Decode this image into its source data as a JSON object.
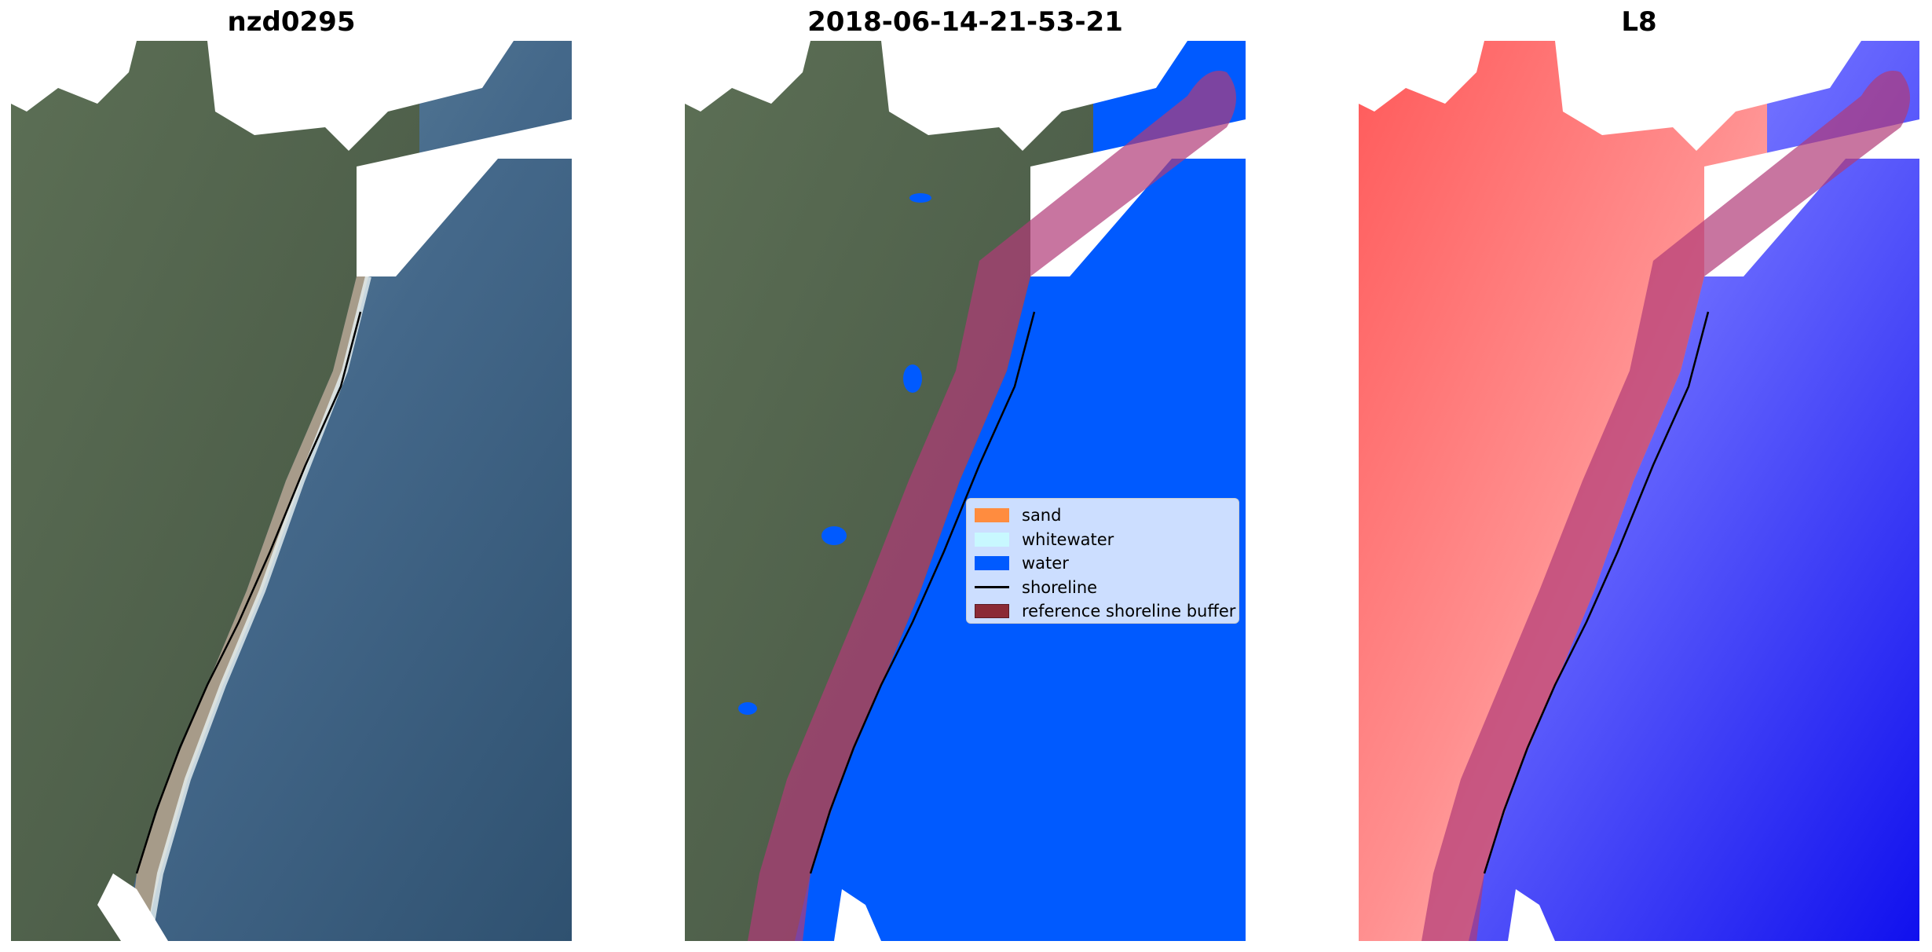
{
  "panels": [
    {
      "title": "nzd0295"
    },
    {
      "title": "2018-06-14-21-53-21"
    },
    {
      "title": "L8"
    }
  ],
  "legend": {
    "items": [
      {
        "label": "sand",
        "color": "#ff8c3f"
      },
      {
        "label": "whitewater",
        "color": "#c8f8ff"
      },
      {
        "label": "water",
        "color": "#005aff"
      },
      {
        "label": "shoreline",
        "color": "#000000"
      },
      {
        "label": "reference shoreline buffer",
        "color": "#8b2a35"
      }
    ]
  },
  "colors": {
    "land": "#5b6b55",
    "ocean": "#46698a",
    "water_class": "#005aff",
    "buffer": "#b03a78",
    "index_land": "#ff3a3a",
    "index_water": "#1a1aff"
  }
}
